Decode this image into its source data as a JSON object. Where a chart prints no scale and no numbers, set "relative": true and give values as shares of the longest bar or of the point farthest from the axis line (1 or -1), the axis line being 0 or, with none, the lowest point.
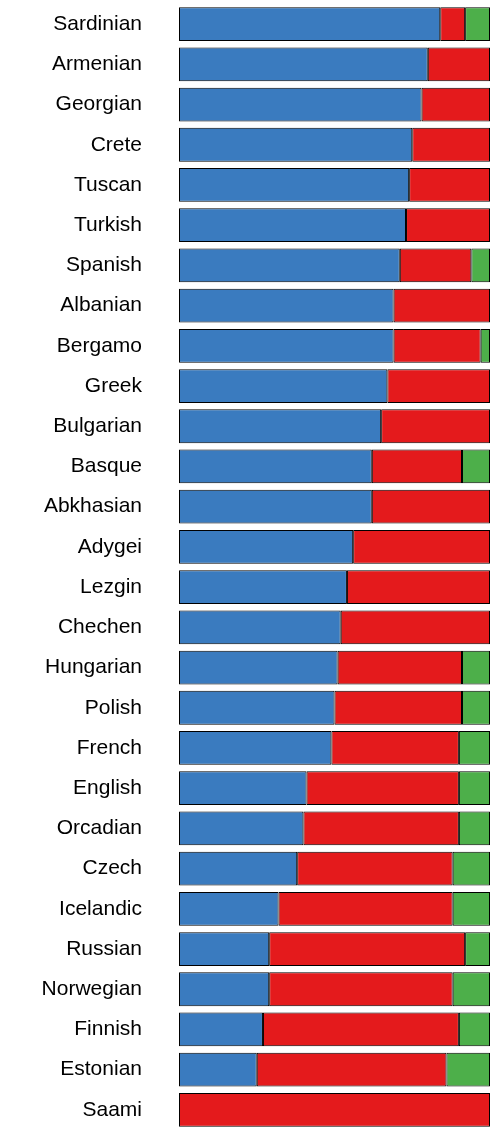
{
  "chart_data": {
    "type": "bar",
    "orientation": "horizontal",
    "stacked": true,
    "relative": true,
    "legend": false,
    "grid": false,
    "categories": [
      "Sardinian",
      "Armenian",
      "Georgian",
      "Crete",
      "Tuscan",
      "Turkish",
      "Spanish",
      "Albanian",
      "Bergamo",
      "Greek",
      "Bulgarian",
      "Basque",
      "Abkhasian",
      "Adygei",
      "Lezgin",
      "Chechen",
      "Hungarian",
      "Polish",
      "French",
      "English",
      "Orcadian",
      "Czech",
      "Icelandic",
      "Russian",
      "Norwegian",
      "Finnish",
      "Estonian",
      "Saami"
    ],
    "series": [
      {
        "color": "#3a7bbf",
        "values": [
          0.84,
          0.8,
          0.78,
          0.75,
          0.74,
          0.73,
          0.71,
          0.69,
          0.69,
          0.67,
          0.65,
          0.62,
          0.62,
          0.56,
          0.54,
          0.52,
          0.51,
          0.5,
          0.49,
          0.41,
          0.4,
          0.38,
          0.32,
          0.29,
          0.29,
          0.27,
          0.25,
          0
        ]
      },
      {
        "color": "#e41a1c",
        "values": [
          0.08,
          0.2,
          0.22,
          0.25,
          0.26,
          0.27,
          0.23,
          0.31,
          0.28,
          0.33,
          0.35,
          0.29,
          0.38,
          0.44,
          0.46,
          0.48,
          0.4,
          0.41,
          0.41,
          0.49,
          0.5,
          0.5,
          0.56,
          0.63,
          0.59,
          0.63,
          0.61,
          1
        ]
      },
      {
        "color": "#4daf4a",
        "values": [
          0.08,
          0,
          0,
          0,
          0,
          0,
          0.06,
          0,
          0.03,
          0,
          0,
          0.09,
          0,
          0,
          0,
          0,
          0.09,
          0.09,
          0.1,
          0.1,
          0.1,
          0.12,
          0.12,
          0.08,
          0.12,
          0.1,
          0.14,
          0
        ]
      }
    ]
  }
}
